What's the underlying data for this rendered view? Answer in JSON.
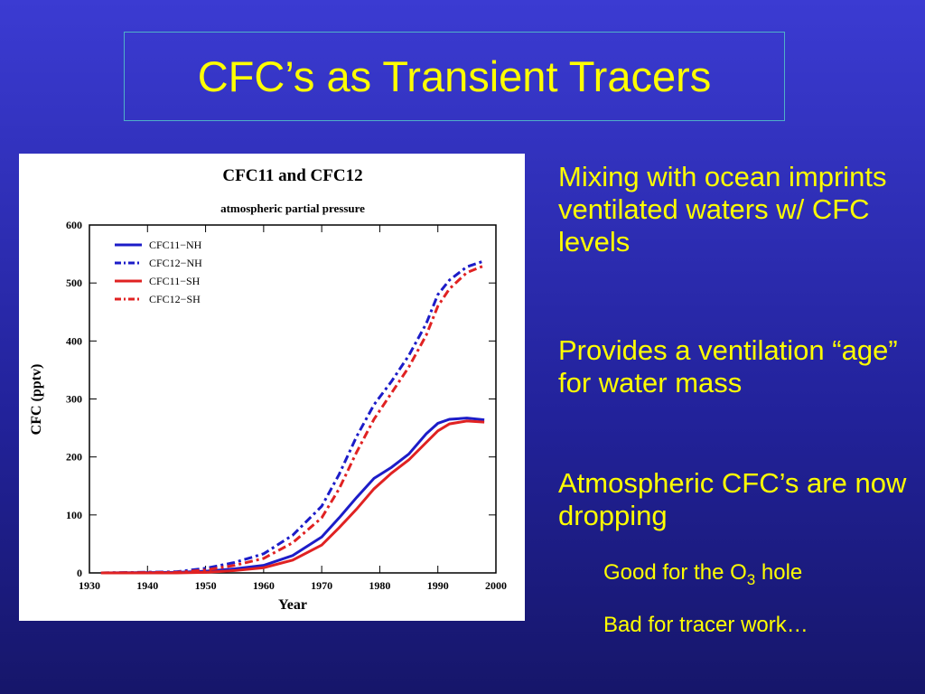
{
  "slide": {
    "title": "CFC’s as Transient Tracers",
    "bullets": [
      "Mixing with ocean imprints ventilated waters w/ CFC levels",
      "Provides a ventilation “age” for water mass",
      "Atmospheric CFC’s are now dropping"
    ],
    "sub_bullets": [
      {
        "text": "Good for the O",
        "subscript": "3",
        "after": "hole"
      },
      {
        "text": "Bad for tracer work…"
      }
    ]
  },
  "chart_data": {
    "type": "line",
    "title": "CFC11 and CFC12",
    "subtitle": "atmospheric partial pressure",
    "x_label": "Year",
    "y_label": "CFC (pptv)",
    "x": [
      1932,
      1945,
      1950,
      1955,
      1960,
      1965,
      1970,
      1973,
      1976,
      1979,
      1982,
      1985,
      1988,
      1990,
      1992,
      1995,
      1998
    ],
    "series": [
      {
        "name": "CFC11−NH",
        "color": "#1c1cc8",
        "linestyle": "solid",
        "values": [
          0,
          1,
          3,
          7,
          13,
          30,
          62,
          95,
          130,
          163,
          182,
          205,
          240,
          258,
          265,
          267,
          264
        ]
      },
      {
        "name": "CFC12−NH",
        "color": "#1c1cc8",
        "linestyle": "dashed",
        "values": [
          0,
          2,
          8,
          18,
          33,
          65,
          115,
          170,
          235,
          290,
          330,
          375,
          430,
          480,
          505,
          528,
          538
        ]
      },
      {
        "name": "CFC11−SH",
        "color": "#e02222",
        "linestyle": "solid",
        "values": [
          0,
          0,
          1,
          4,
          9,
          22,
          48,
          78,
          110,
          145,
          172,
          195,
          225,
          245,
          257,
          262,
          260
        ]
      },
      {
        "name": "CFC12−SH",
        "color": "#e02222",
        "linestyle": "dashed",
        "values": [
          0,
          1,
          5,
          13,
          25,
          52,
          95,
          145,
          208,
          265,
          310,
          355,
          410,
          460,
          490,
          518,
          530
        ]
      }
    ],
    "xlim": [
      1930,
      2000
    ],
    "xticks": [
      1930,
      1940,
      1950,
      1960,
      1970,
      1980,
      1990,
      2000
    ],
    "ylim": [
      0,
      600
    ],
    "yticks": [
      0,
      100,
      200,
      300,
      400,
      500,
      600
    ],
    "legend": "upper left"
  }
}
